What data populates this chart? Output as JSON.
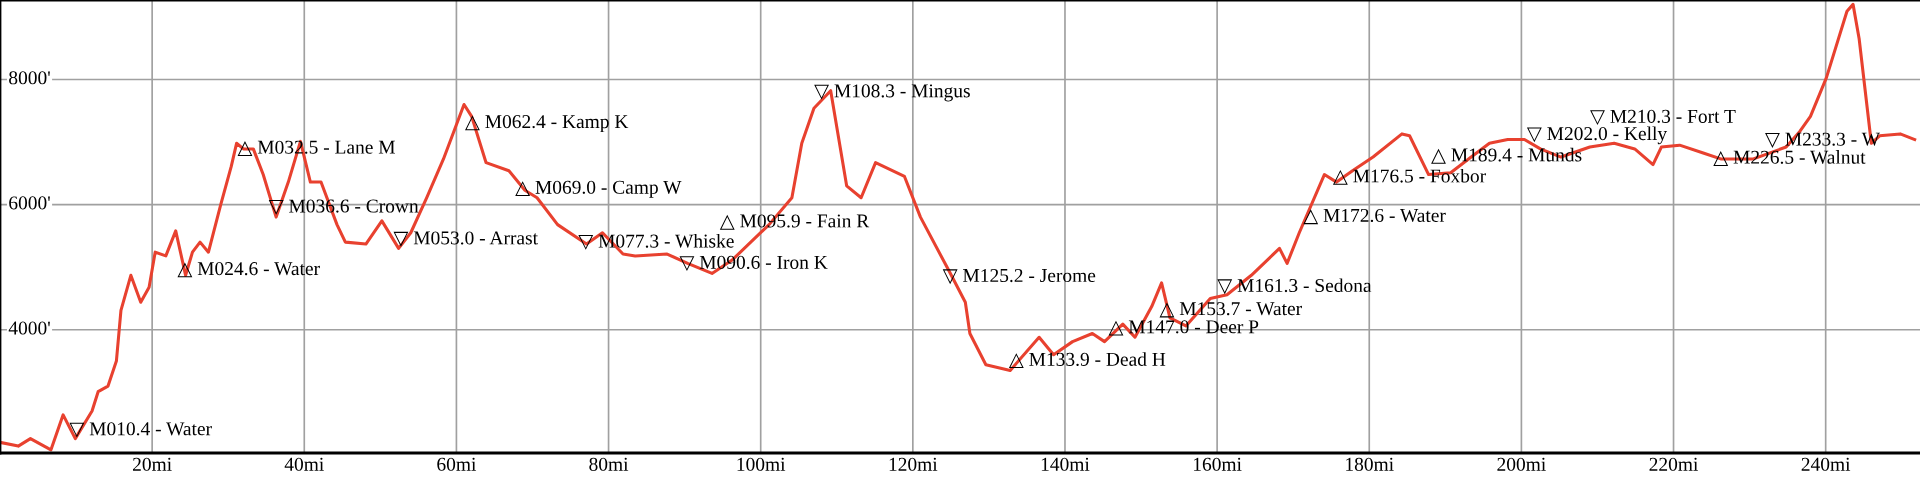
{
  "chart_data": {
    "type": "line",
    "x": [
      0,
      2.4,
      4.0,
      6.7,
      8.3,
      9.9,
      12.1,
      12.9,
      14.2,
      15.3,
      15.9,
      17.2,
      18.5,
      19.6,
      20.4,
      21.8,
      23.1,
      24.4,
      25.3,
      26.3,
      27.4,
      29.0,
      30.4,
      31.1,
      32.0,
      33.3,
      34.6,
      36.3,
      37.9,
      39.5,
      40.8,
      42.2,
      44.3,
      45.4,
      48.1,
      50.2,
      52.4,
      54.0,
      56.1,
      58.3,
      61.0,
      62.0,
      63.9,
      66.9,
      69.0,
      70.6,
      73.3,
      77.1,
      79.2,
      81.9,
      83.5,
      87.7,
      90.4,
      93.6,
      96.3,
      101.1,
      104.1,
      105.4,
      107.0,
      109.2,
      111.3,
      113.2,
      115.1,
      118.9,
      121.0,
      124.8,
      126.9,
      127.5,
      129.6,
      132.8,
      136.6,
      138.5,
      141.0,
      143.6,
      145.2,
      147.6,
      149.2,
      151.4,
      152.7,
      153.8,
      155.9,
      159.1,
      161.3,
      164.5,
      168.2,
      169.2,
      170.8,
      174.1,
      175.7,
      177.8,
      180.5,
      184.3,
      185.3,
      187.8,
      190.7,
      193.4,
      195.8,
      198.2,
      200.4,
      202.5,
      205.2,
      209.0,
      212.2,
      214.9,
      217.3,
      218.4,
      220.8,
      224.0,
      226.2,
      230.5,
      234.8,
      236.6,
      238.0,
      240.1,
      242.8,
      243.6,
      244.4,
      246.0,
      247.1,
      249.8,
      251.7
    ],
    "series": [
      {
        "color": "#e8412f",
        "values": [
          2200,
          2140,
          2260,
          2080,
          2640,
          2260,
          2700,
          3010,
          3100,
          3500,
          4310,
          4870,
          4440,
          4680,
          5240,
          5180,
          5580,
          4870,
          5240,
          5400,
          5240,
          5990,
          6610,
          6980,
          6890,
          6890,
          6480,
          5800,
          6360,
          7010,
          6360,
          6360,
          5680,
          5400,
          5370,
          5740,
          5300,
          5550,
          6110,
          6730,
          7600,
          7410,
          6670,
          6540,
          6230,
          6110,
          5680,
          5370,
          5550,
          5210,
          5180,
          5210,
          5060,
          4900,
          5120,
          5680,
          6110,
          6980,
          7540,
          7820,
          6300,
          6110,
          6670,
          6450,
          5800,
          4930,
          4440,
          3940,
          3440,
          3350,
          3880,
          3600,
          3810,
          3940,
          3810,
          4090,
          3880,
          4370,
          4750,
          4190,
          4060,
          4500,
          4560,
          4870,
          5300,
          5060,
          5550,
          6480,
          6360,
          6540,
          6760,
          7130,
          7100,
          6480,
          6510,
          6760,
          6980,
          7040,
          7040,
          6890,
          6760,
          6920,
          6980,
          6890,
          6640,
          6920,
          6950,
          6820,
          6730,
          6730,
          6920,
          7170,
          7410,
          8030,
          9090,
          9200,
          8650,
          6980,
          7100,
          7130,
          7040
        ]
      }
    ],
    "xlim": [
      0,
      252.4
    ],
    "ylim": [
      2030,
      9270
    ],
    "xticks": [
      {
        "value": 20,
        "label": "20mi"
      },
      {
        "value": 40,
        "label": "40mi"
      },
      {
        "value": 60,
        "label": "60mi"
      },
      {
        "value": 80,
        "label": "80mi"
      },
      {
        "value": 100,
        "label": "100mi"
      },
      {
        "value": 120,
        "label": "120mi"
      },
      {
        "value": 140,
        "label": "140mi"
      },
      {
        "value": 160,
        "label": "160mi"
      },
      {
        "value": 180,
        "label": "180mi"
      },
      {
        "value": 200,
        "label": "200mi"
      },
      {
        "value": 220,
        "label": "220mi"
      },
      {
        "value": 240,
        "label": "240mi"
      }
    ],
    "yticks": [
      {
        "value": 4000,
        "label": "4000'"
      },
      {
        "value": 6000,
        "label": "6000'"
      },
      {
        "value": 8000,
        "label": "8000'"
      }
    ],
    "grid": true,
    "annotations": [
      {
        "text": "▽ M010.4 - Water",
        "x": 10.4,
        "y": 2390
      },
      {
        "text": "△ M024.6 - Water",
        "x": 24.6,
        "y": 4950
      },
      {
        "text": "△ M032.5 - Lane M",
        "x": 32.5,
        "y": 6890
      },
      {
        "text": "▽ M036.6 - Crown",
        "x": 36.6,
        "y": 5950
      },
      {
        "text": "▽ M053.0 - Arrast",
        "x": 53.0,
        "y": 5440
      },
      {
        "text": "△ M062.4 - Kamp K",
        "x": 62.4,
        "y": 7300
      },
      {
        "text": "△ M069.0 - Camp W",
        "x": 69.0,
        "y": 6250
      },
      {
        "text": "▽ M077.3 - Whiske",
        "x": 77.3,
        "y": 5390
      },
      {
        "text": "▽ M090.6 - Iron K",
        "x": 90.6,
        "y": 5050
      },
      {
        "text": "△ M095.9 - Fain R",
        "x": 95.9,
        "y": 5090
      },
      {
        "text": "▽ M108.3 - Mingus",
        "x": 108.3,
        "y": 7790
      },
      {
        "text": "▽ M125.2 - Jerome",
        "x": 125.2,
        "y": 4840
      },
      {
        "text": "△ M133.9 - Dead H",
        "x": 133.9,
        "y": 3500
      },
      {
        "text": "△ M147.0 - Deer P",
        "x": 147.0,
        "y": 4020
      },
      {
        "text": "△ M153.7 - Water",
        "x": 153.7,
        "y": 4310
      },
      {
        "text": "▽ M161.3 - Sedona",
        "x": 161.3,
        "y": 4680
      },
      {
        "text": "△ M172.6 - Water",
        "x": 172.6,
        "y": 5800
      },
      {
        "text": "△ M176.5 - Foxbor",
        "x": 176.5,
        "y": 6430
      },
      {
        "text": "△ M189.4 - Munds",
        "x": 189.4,
        "y": 6500
      },
      {
        "text": "▽ M202.0 - Kelly",
        "x": 202.0,
        "y": 6930
      },
      {
        "text": "▽ M210.3 - Fort T",
        "x": 210.3,
        "y": 6940
      },
      {
        "text": "△ M226.5 - Walnut",
        "x": 226.5,
        "y": 6730
      },
      {
        "text": "▽ M233.3 - W",
        "x": 233.3,
        "y": 6930
      }
    ]
  }
}
